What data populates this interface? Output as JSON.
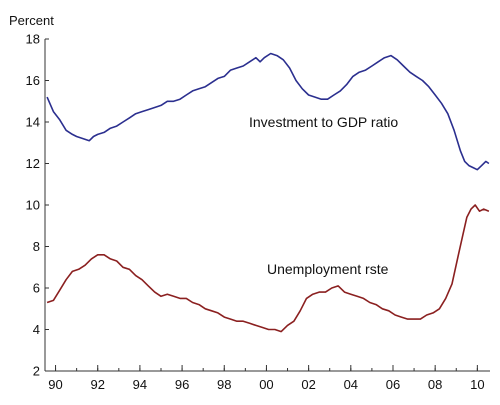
{
  "chart_data": {
    "type": "line",
    "ylabel": "Percent",
    "ylim": [
      2,
      18
    ],
    "xlim": [
      1989.5,
      2010.6
    ],
    "y_ticks": [
      2,
      4,
      6,
      8,
      10,
      12,
      14,
      16,
      18
    ],
    "x_ticks": [
      {
        "value": 1990,
        "label": "90"
      },
      {
        "value": 1992,
        "label": "92"
      },
      {
        "value": 1994,
        "label": "94"
      },
      {
        "value": 1996,
        "label": "96"
      },
      {
        "value": 1998,
        "label": "98"
      },
      {
        "value": 2000,
        "label": "00"
      },
      {
        "value": 2002,
        "label": "02"
      },
      {
        "value": 2004,
        "label": "04"
      },
      {
        "value": 2006,
        "label": "06"
      },
      {
        "value": 2008,
        "label": "08"
      },
      {
        "value": 2010,
        "label": "10"
      }
    ],
    "grid": false,
    "annotations": [
      {
        "text": "Investment to GDP ratio",
        "series": 0
      },
      {
        "text": "Unemployment rste",
        "series": 1
      }
    ],
    "series": [
      {
        "color": "#2b2f8f",
        "points": [
          [
            1989.6,
            15.2
          ],
          [
            1989.9,
            14.5
          ],
          [
            1990.2,
            14.1
          ],
          [
            1990.5,
            13.6
          ],
          [
            1990.8,
            13.4
          ],
          [
            1991.0,
            13.3
          ],
          [
            1991.3,
            13.2
          ],
          [
            1991.6,
            13.1
          ],
          [
            1991.8,
            13.3
          ],
          [
            1992.0,
            13.4
          ],
          [
            1992.3,
            13.5
          ],
          [
            1992.6,
            13.7
          ],
          [
            1992.9,
            13.8
          ],
          [
            1993.2,
            14.0
          ],
          [
            1993.5,
            14.2
          ],
          [
            1993.8,
            14.4
          ],
          [
            1994.1,
            14.5
          ],
          [
            1994.4,
            14.6
          ],
          [
            1994.7,
            14.7
          ],
          [
            1995.0,
            14.8
          ],
          [
            1995.3,
            15.0
          ],
          [
            1995.6,
            15.0
          ],
          [
            1995.9,
            15.1
          ],
          [
            1996.2,
            15.3
          ],
          [
            1996.5,
            15.5
          ],
          [
            1996.8,
            15.6
          ],
          [
            1997.1,
            15.7
          ],
          [
            1997.4,
            15.9
          ],
          [
            1997.7,
            16.1
          ],
          [
            1998.0,
            16.2
          ],
          [
            1998.3,
            16.5
          ],
          [
            1998.6,
            16.6
          ],
          [
            1998.9,
            16.7
          ],
          [
            1999.2,
            16.9
          ],
          [
            1999.5,
            17.1
          ],
          [
            1999.7,
            16.9
          ],
          [
            1999.9,
            17.1
          ],
          [
            2000.2,
            17.3
          ],
          [
            2000.5,
            17.2
          ],
          [
            2000.8,
            17.0
          ],
          [
            2001.1,
            16.6
          ],
          [
            2001.4,
            16.0
          ],
          [
            2001.7,
            15.6
          ],
          [
            2002.0,
            15.3
          ],
          [
            2002.3,
            15.2
          ],
          [
            2002.6,
            15.1
          ],
          [
            2002.9,
            15.1
          ],
          [
            2003.2,
            15.3
          ],
          [
            2003.5,
            15.5
          ],
          [
            2003.8,
            15.8
          ],
          [
            2004.1,
            16.2
          ],
          [
            2004.4,
            16.4
          ],
          [
            2004.7,
            16.5
          ],
          [
            2005.0,
            16.7
          ],
          [
            2005.3,
            16.9
          ],
          [
            2005.6,
            17.1
          ],
          [
            2005.9,
            17.2
          ],
          [
            2006.2,
            17.0
          ],
          [
            2006.5,
            16.7
          ],
          [
            2006.8,
            16.4
          ],
          [
            2007.1,
            16.2
          ],
          [
            2007.4,
            16.0
          ],
          [
            2007.7,
            15.7
          ],
          [
            2008.0,
            15.3
          ],
          [
            2008.3,
            14.9
          ],
          [
            2008.6,
            14.4
          ],
          [
            2008.9,
            13.6
          ],
          [
            2009.2,
            12.6
          ],
          [
            2009.4,
            12.1
          ],
          [
            2009.6,
            11.9
          ],
          [
            2009.8,
            11.8
          ],
          [
            2010.0,
            11.7
          ],
          [
            2010.2,
            11.9
          ],
          [
            2010.4,
            12.1
          ],
          [
            2010.55,
            12.0
          ]
        ]
      },
      {
        "color": "#8b2020",
        "points": [
          [
            1989.6,
            5.3
          ],
          [
            1989.9,
            5.4
          ],
          [
            1990.2,
            5.9
          ],
          [
            1990.5,
            6.4
          ],
          [
            1990.8,
            6.8
          ],
          [
            1991.1,
            6.9
          ],
          [
            1991.4,
            7.1
          ],
          [
            1991.7,
            7.4
          ],
          [
            1992.0,
            7.6
          ],
          [
            1992.3,
            7.6
          ],
          [
            1992.6,
            7.4
          ],
          [
            1992.9,
            7.3
          ],
          [
            1993.2,
            7.0
          ],
          [
            1993.5,
            6.9
          ],
          [
            1993.8,
            6.6
          ],
          [
            1994.1,
            6.4
          ],
          [
            1994.4,
            6.1
          ],
          [
            1994.7,
            5.8
          ],
          [
            1995.0,
            5.6
          ],
          [
            1995.3,
            5.7
          ],
          [
            1995.6,
            5.6
          ],
          [
            1995.9,
            5.5
          ],
          [
            1996.2,
            5.5
          ],
          [
            1996.5,
            5.3
          ],
          [
            1996.8,
            5.2
          ],
          [
            1997.1,
            5.0
          ],
          [
            1997.4,
            4.9
          ],
          [
            1997.7,
            4.8
          ],
          [
            1998.0,
            4.6
          ],
          [
            1998.3,
            4.5
          ],
          [
            1998.6,
            4.4
          ],
          [
            1998.9,
            4.4
          ],
          [
            1999.2,
            4.3
          ],
          [
            1999.5,
            4.2
          ],
          [
            1999.8,
            4.1
          ],
          [
            2000.1,
            4.0
          ],
          [
            2000.4,
            4.0
          ],
          [
            2000.7,
            3.9
          ],
          [
            2001.0,
            4.2
          ],
          [
            2001.3,
            4.4
          ],
          [
            2001.6,
            4.9
          ],
          [
            2001.9,
            5.5
          ],
          [
            2002.2,
            5.7
          ],
          [
            2002.5,
            5.8
          ],
          [
            2002.8,
            5.8
          ],
          [
            2003.1,
            6.0
          ],
          [
            2003.4,
            6.1
          ],
          [
            2003.7,
            5.8
          ],
          [
            2004.0,
            5.7
          ],
          [
            2004.3,
            5.6
          ],
          [
            2004.6,
            5.5
          ],
          [
            2004.9,
            5.3
          ],
          [
            2005.2,
            5.2
          ],
          [
            2005.5,
            5.0
          ],
          [
            2005.8,
            4.9
          ],
          [
            2006.1,
            4.7
          ],
          [
            2006.4,
            4.6
          ],
          [
            2006.7,
            4.5
          ],
          [
            2007.0,
            4.5
          ],
          [
            2007.3,
            4.5
          ],
          [
            2007.6,
            4.7
          ],
          [
            2007.9,
            4.8
          ],
          [
            2008.2,
            5.0
          ],
          [
            2008.5,
            5.5
          ],
          [
            2008.8,
            6.2
          ],
          [
            2009.1,
            7.6
          ],
          [
            2009.3,
            8.5
          ],
          [
            2009.5,
            9.4
          ],
          [
            2009.7,
            9.8
          ],
          [
            2009.9,
            10.0
          ],
          [
            2010.1,
            9.7
          ],
          [
            2010.3,
            9.8
          ],
          [
            2010.55,
            9.7
          ]
        ]
      }
    ]
  }
}
